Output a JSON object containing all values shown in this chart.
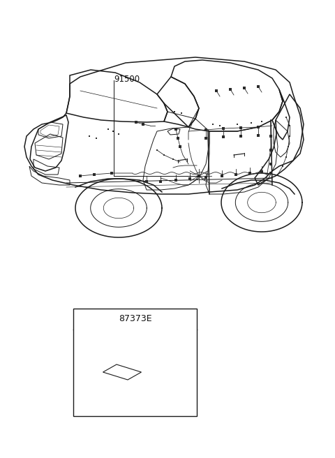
{
  "background_color": "#ffffff",
  "label_91500": "91500",
  "label_87373E": "87373E",
  "fig_width": 4.8,
  "fig_height": 6.56,
  "dpi": 100,
  "line_color": "#1a1a1a",
  "text_color": "#111111",
  "annotation_fontsize": 8.5,
  "part_label_fontsize": 9
}
